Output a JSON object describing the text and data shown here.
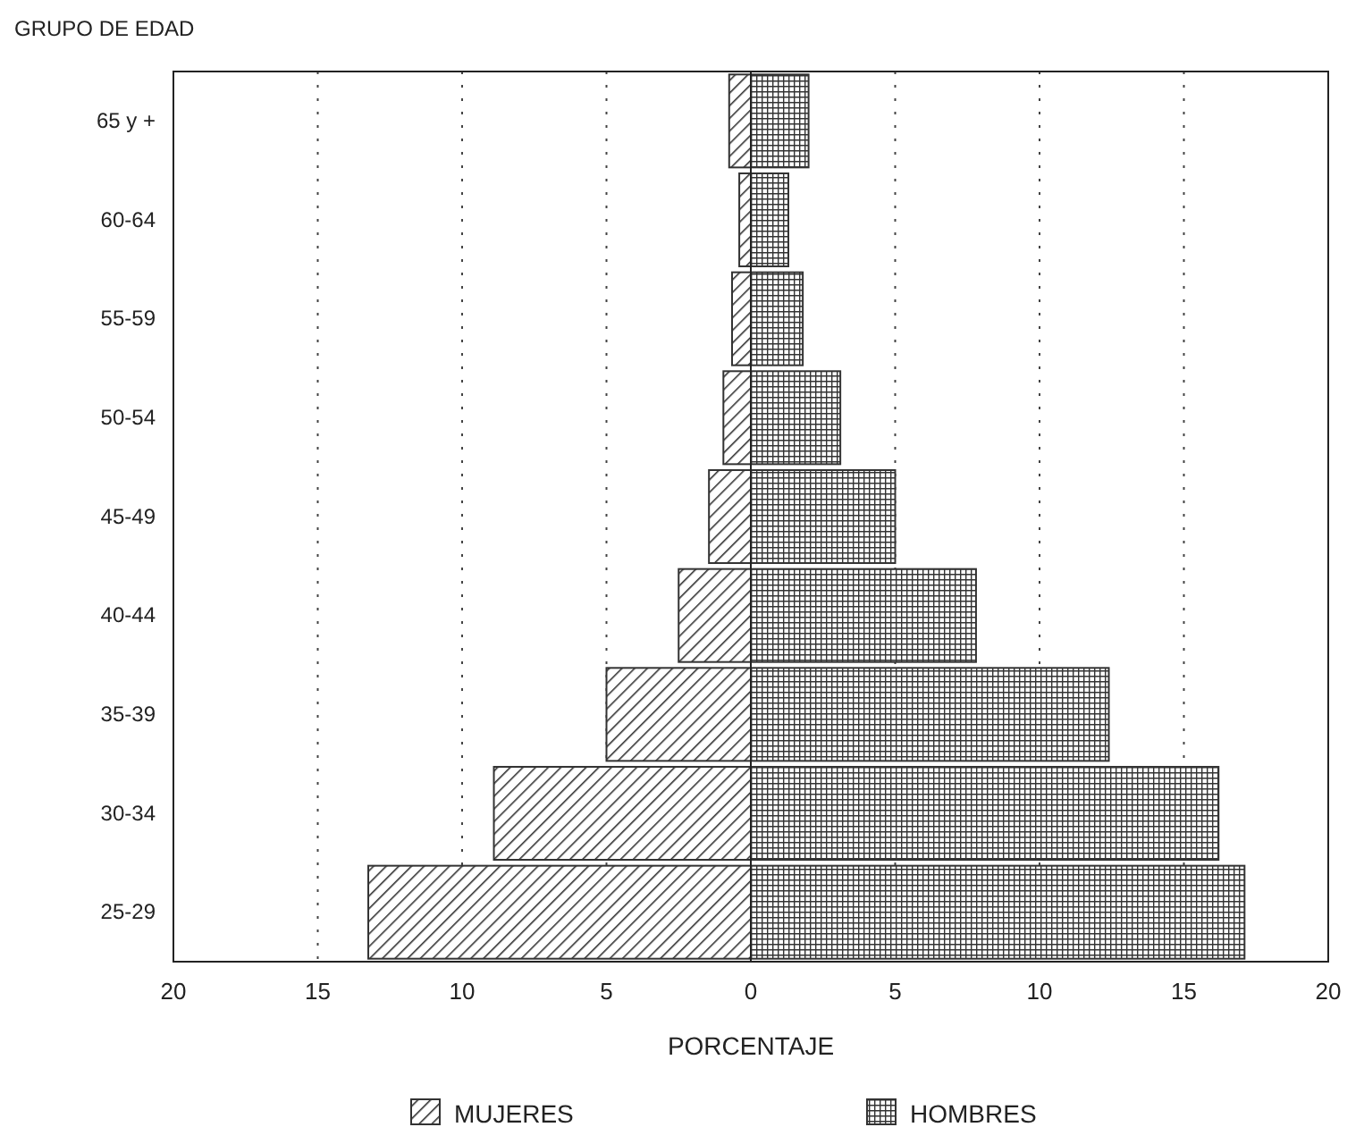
{
  "chart_data": {
    "type": "bar",
    "orientation": "horizontal",
    "ylabel": "GRUPO DE EDAD",
    "xlabel": "PORCENTAJE",
    "categories": [
      "65 y +",
      "60-64",
      "55-59",
      "50-54",
      "45-49",
      "40-44",
      "35-39",
      "30-34",
      "25-29"
    ],
    "series": [
      {
        "name": "MUJERES",
        "color": "#333333",
        "values": [
          -0.75,
          -0.4,
          -0.65,
          -0.95,
          -1.45,
          -2.5,
          -5.0,
          -8.9,
          -13.25
        ]
      },
      {
        "name": "HOMBRES",
        "color": "#333333",
        "values": [
          2.0,
          1.3,
          1.8,
          3.1,
          5.0,
          7.8,
          12.4,
          16.2,
          17.1
        ]
      }
    ],
    "xlim": [
      -20,
      20
    ],
    "xticks": [
      {
        "value": -20,
        "label": "20"
      },
      {
        "value": -15,
        "label": "15"
      },
      {
        "value": -10,
        "label": "10"
      },
      {
        "value": -5,
        "label": "5"
      },
      0,
      5,
      10,
      15,
      20
    ],
    "grid": "x",
    "legend": "bottom",
    "stacked": true
  }
}
